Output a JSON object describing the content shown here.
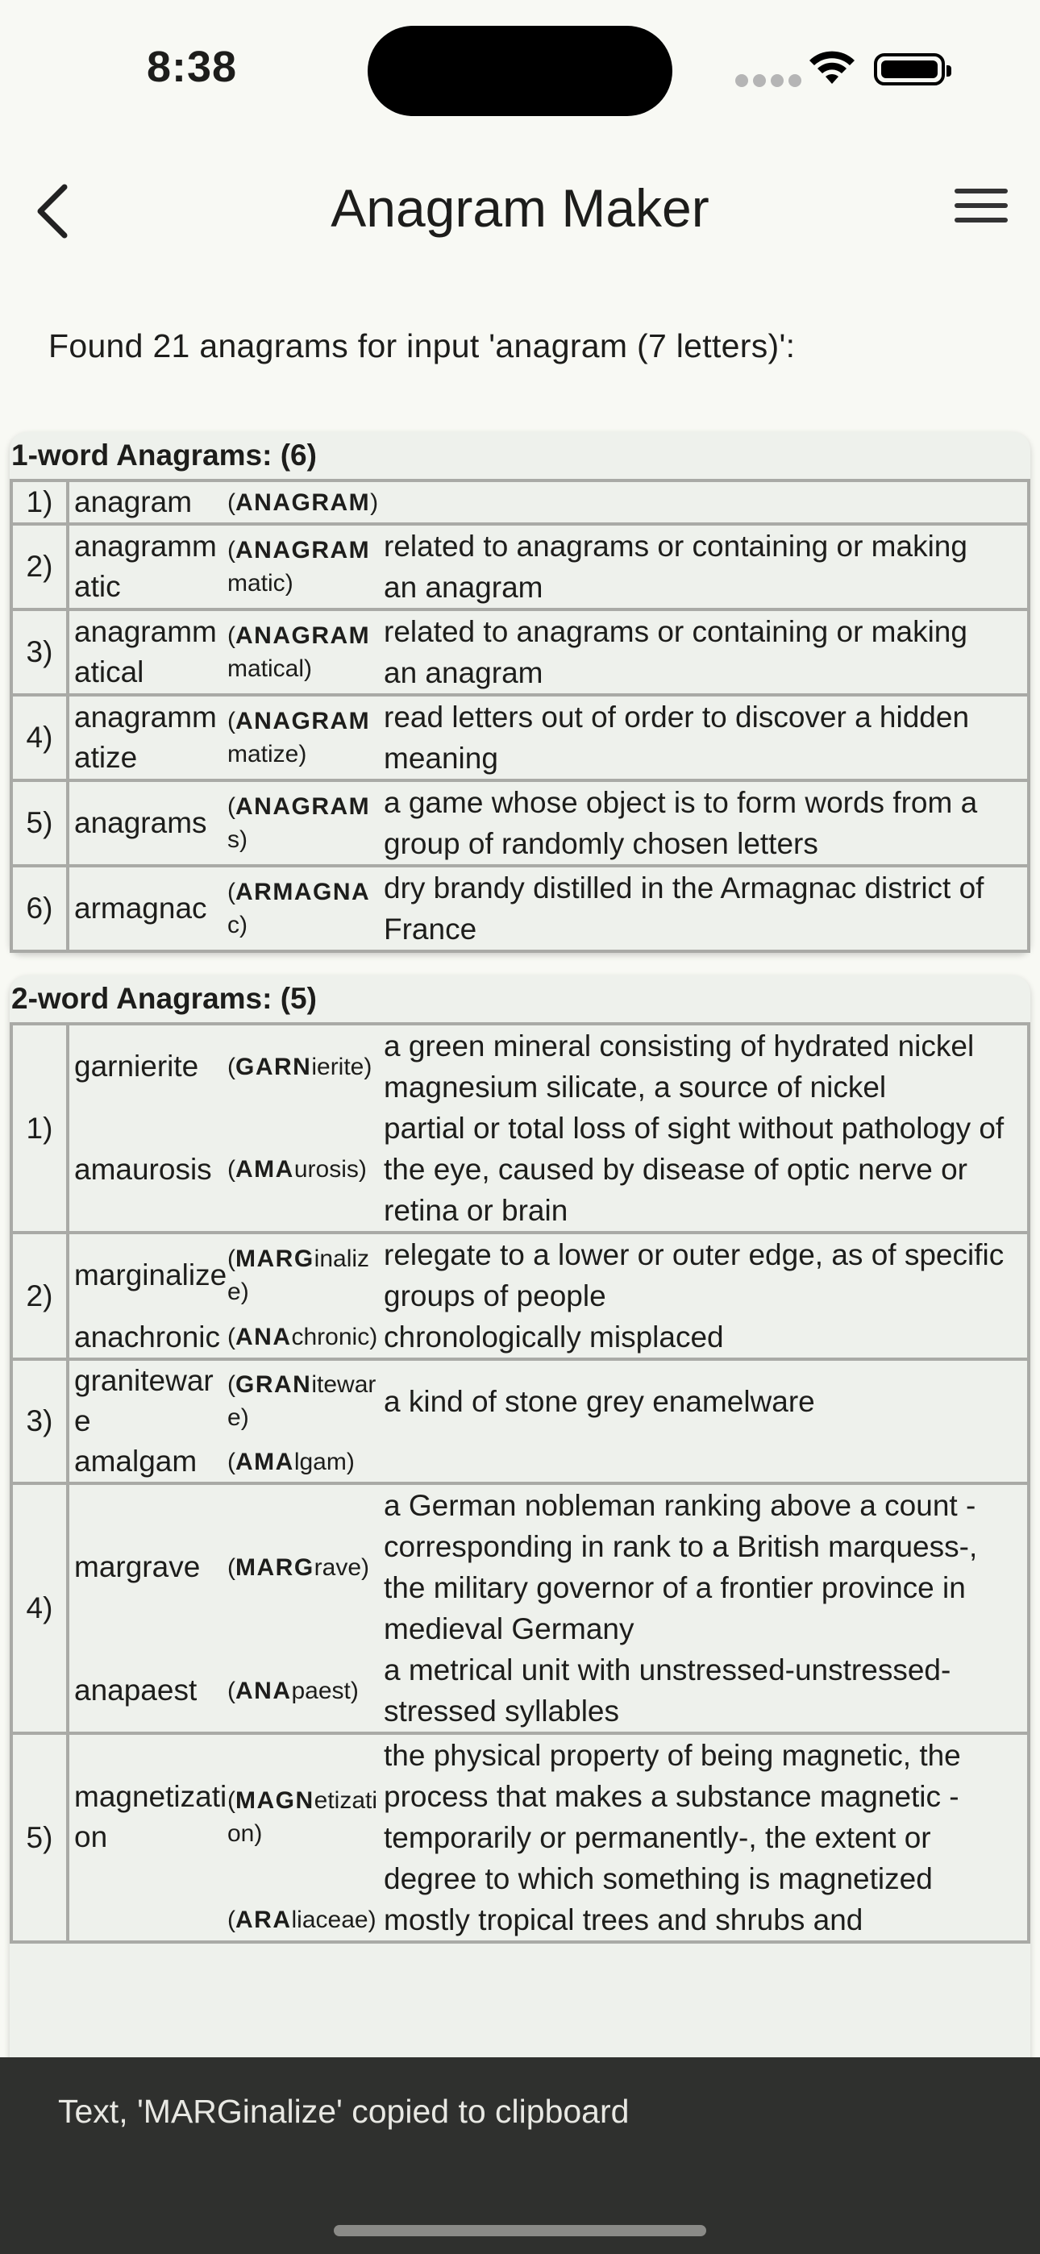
{
  "status": {
    "time": "8:38"
  },
  "nav": {
    "title": "Anagram Maker",
    "back_icon": "chevron-left-icon",
    "menu_icon": "hamburger-menu-icon"
  },
  "summary": "Found 21 anagrams for input 'anagram (7 letters)':",
  "one_word": {
    "heading": "1-word Anagrams: (6)",
    "rows": [
      {
        "idx": "1)",
        "word": "anagram",
        "hl": "ANAGRAM",
        "rest": "",
        "def": ""
      },
      {
        "idx": "2)",
        "word": "anagrammatic",
        "hl": "ANAGRAM",
        "rest": "matic",
        "def": "related to anagrams or containing or making an anagram"
      },
      {
        "idx": "3)",
        "word": "anagrammatical",
        "hl": "ANAGRAM",
        "rest": "matical",
        "def": "related to anagrams or containing or making an anagram"
      },
      {
        "idx": "4)",
        "word": "anagrammatize",
        "hl": "ANAGRAM",
        "rest": "matize",
        "def": "read letters out of order to discover a hidden meaning"
      },
      {
        "idx": "5)",
        "word": "anagrams",
        "hl": "ANAGRAM",
        "rest": "s",
        "def": "a game whose object is to form words from a group of randomly chosen letters"
      },
      {
        "idx": "6)",
        "word": "armagnac",
        "hl": "ARMAGNA",
        "rest": "c",
        "def": "dry brandy distilled in the Armagnac district of France"
      }
    ]
  },
  "two_word": {
    "heading": "2-word Anagrams: (5)",
    "rows": [
      {
        "idx": "1)",
        "entries": [
          {
            "word": "garnierite",
            "hl": "GARN",
            "rest": "ierite",
            "def": "a green mineral consisting of hydrated nickel magnesium silicate, a source of nickel"
          },
          {
            "word": "amaurosis",
            "hl": "AMA",
            "rest": "urosis",
            "def": "partial or total loss of sight without pathology of the eye, caused by disease of optic nerve or retina or brain"
          }
        ]
      },
      {
        "idx": "2)",
        "entries": [
          {
            "word": "marginalize",
            "hl": "MARG",
            "rest": "inalize",
            "def": "relegate to a lower or outer edge, as of specific groups of people"
          },
          {
            "word": "anachronic",
            "hl": "ANA",
            "rest": "chronic",
            "def": "chronologically misplaced"
          }
        ]
      },
      {
        "idx": "3)",
        "entries": [
          {
            "word": "graniteware",
            "hl": "GRAN",
            "rest": "iteware",
            "def": "a kind of stone grey enamelware"
          },
          {
            "word": "amalgam",
            "hl": "AMA",
            "rest": "lgam",
            "def": ""
          }
        ]
      },
      {
        "idx": "4)",
        "entries": [
          {
            "word": "margrave",
            "hl": "MARG",
            "rest": "rave",
            "def": "a German nobleman ranking above a count -corresponding in rank to a British marquess-, the military governor of a frontier province in medieval Germany"
          },
          {
            "word": "anapaest",
            "hl": "ANA",
            "rest": "paest",
            "def": "a metrical unit with unstressed-unstressed-stressed syllables"
          }
        ]
      },
      {
        "idx": "5)",
        "entries": [
          {
            "word": "magnetization",
            "hl": "MAGN",
            "rest": "etization",
            "def": "the physical property of being magnetic, the process that makes a substance magnetic -temporarily or permanently-, the extent or degree to which something is magnetized"
          },
          {
            "word": "",
            "hl": "ARA",
            "rest": "liaceae",
            "def": "mostly tropical trees and shrubs and"
          }
        ]
      }
    ]
  },
  "toast": "Text, 'MARGinalize' copied to clipboard"
}
